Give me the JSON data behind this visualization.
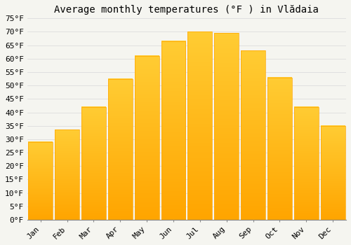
{
  "title": "Average monthly temperatures (°F ) in Vlădaia",
  "months": [
    "Jan",
    "Feb",
    "Mar",
    "Apr",
    "May",
    "Jun",
    "Jul",
    "Aug",
    "Sep",
    "Oct",
    "Nov",
    "Dec"
  ],
  "values": [
    29,
    33.5,
    42,
    52.5,
    61,
    66.5,
    70,
    69.5,
    63,
    53,
    42,
    35
  ],
  "bar_color_top": "#FFCC33",
  "bar_color_bottom": "#FFA500",
  "background_color": "#f5f5f0",
  "grid_color": "#dddddd",
  "ylim": [
    0,
    75
  ],
  "yticks": [
    0,
    5,
    10,
    15,
    20,
    25,
    30,
    35,
    40,
    45,
    50,
    55,
    60,
    65,
    70,
    75
  ],
  "ylabel_format": "°F",
  "title_fontsize": 10,
  "tick_fontsize": 8,
  "font_family": "monospace",
  "bar_width": 0.92
}
